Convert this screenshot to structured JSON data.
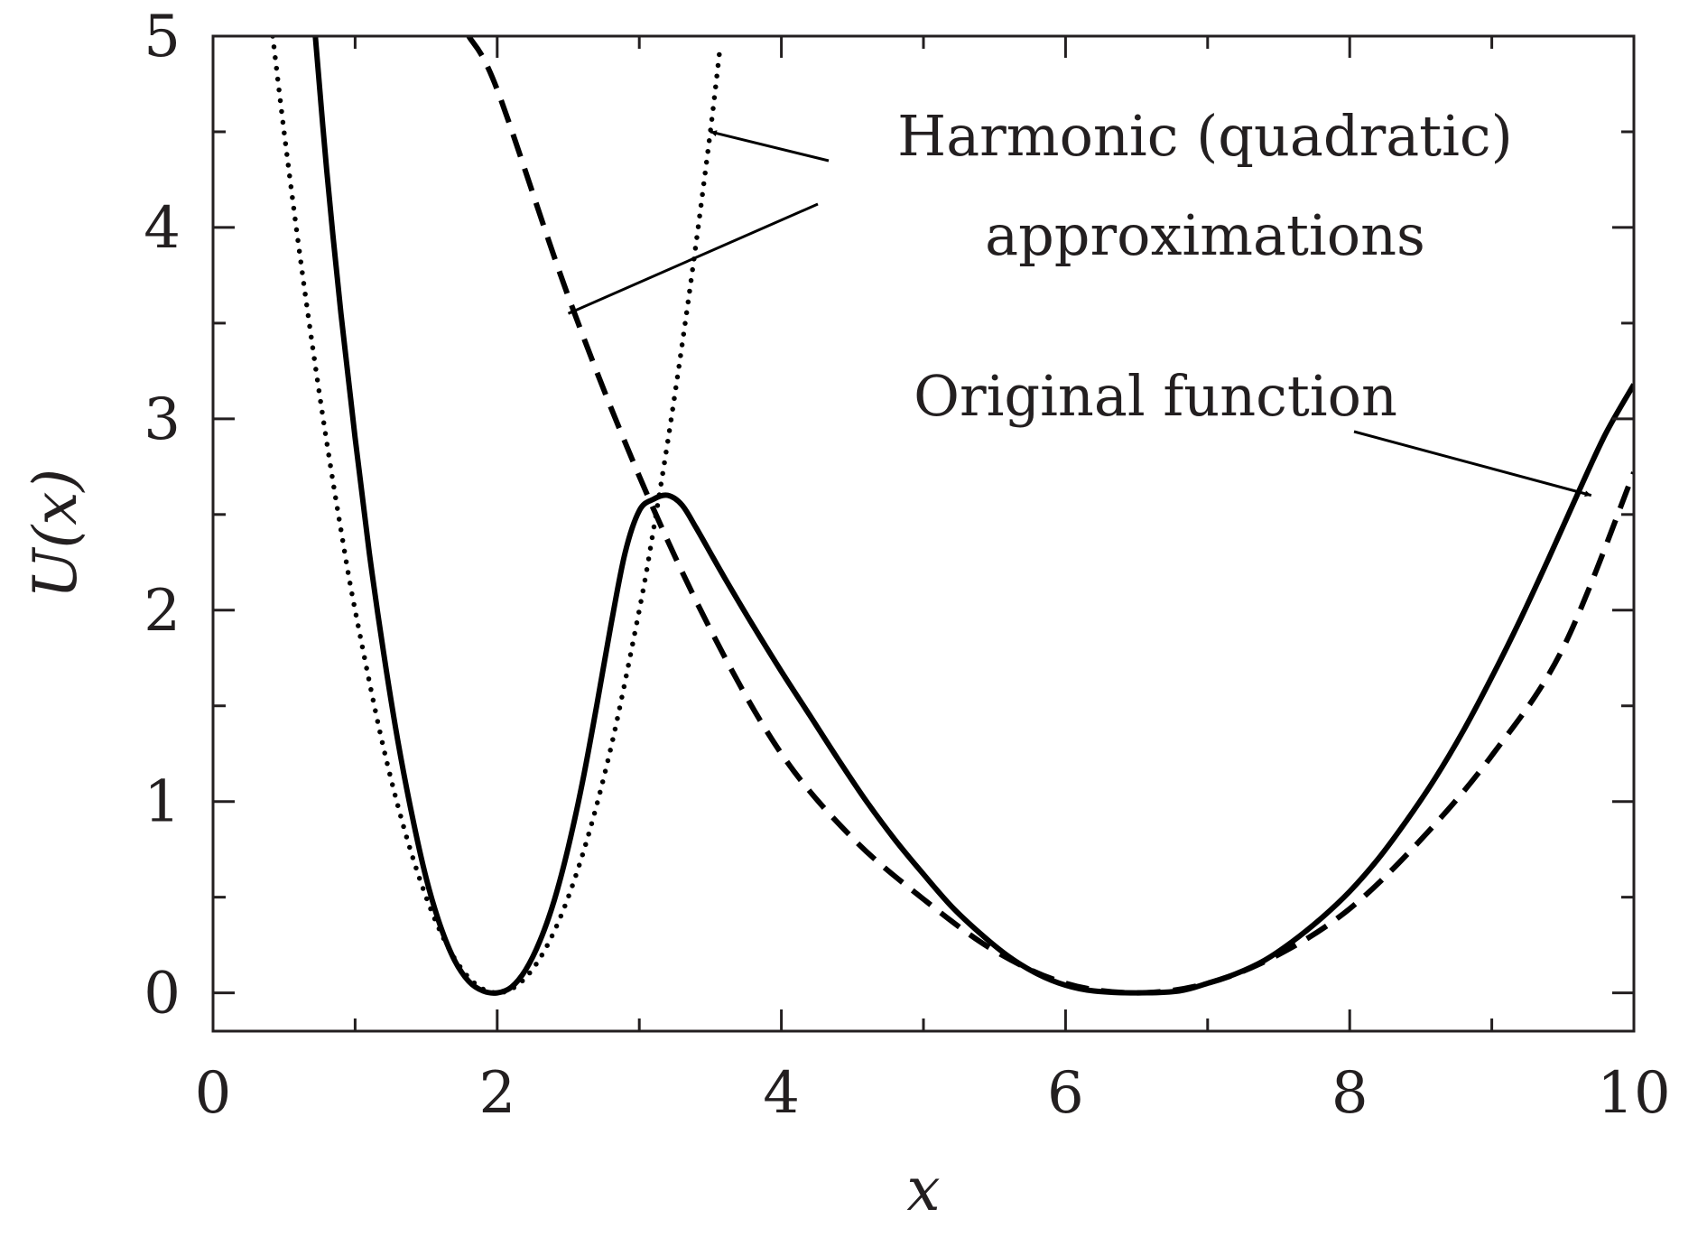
{
  "chart_data": {
    "type": "line",
    "title": "",
    "xlabel": "x",
    "ylabel": "U(x)",
    "xlim": [
      0,
      10
    ],
    "ylim": [
      -0.2,
      5
    ],
    "xticks": [
      0,
      2,
      4,
      6,
      8,
      10
    ],
    "xtick_labels": [
      "0",
      "2",
      "4",
      "6",
      "8",
      "10"
    ],
    "yticks": [
      0,
      1,
      2,
      3,
      4,
      5
    ],
    "ytick_labels": [
      "0",
      "1",
      "2",
      "3",
      "4",
      "5"
    ],
    "minor_x_step": 1,
    "minor_y_step": 0.5,
    "grid": false,
    "series": [
      {
        "name": "Original function",
        "style": "solid",
        "x": [
          0.72,
          0.8,
          0.9,
          1.0,
          1.1,
          1.2,
          1.3,
          1.4,
          1.5,
          1.6,
          1.7,
          1.8,
          1.9,
          2.0,
          2.1,
          2.2,
          2.3,
          2.4,
          2.5,
          2.6,
          2.7,
          2.8,
          2.9,
          3.0,
          3.1,
          3.2,
          3.3,
          3.4,
          3.5,
          3.6,
          3.8,
          4.0,
          4.2,
          4.4,
          4.6,
          4.8,
          5.0,
          5.2,
          5.4,
          5.6,
          5.8,
          6.0,
          6.2,
          6.5,
          6.8,
          7.0,
          7.2,
          7.4,
          7.6,
          7.8,
          8.0,
          8.2,
          8.4,
          8.6,
          8.8,
          9.0,
          9.2,
          9.4,
          9.6,
          9.8,
          10.0
        ],
        "y": [
          5.0,
          4.3,
          3.55,
          2.9,
          2.3,
          1.78,
          1.32,
          0.93,
          0.6,
          0.35,
          0.17,
          0.06,
          0.01,
          0.0,
          0.03,
          0.12,
          0.27,
          0.48,
          0.76,
          1.1,
          1.5,
          1.92,
          2.3,
          2.52,
          2.58,
          2.6,
          2.55,
          2.43,
          2.3,
          2.17,
          1.92,
          1.68,
          1.45,
          1.22,
          1.0,
          0.8,
          0.62,
          0.45,
          0.31,
          0.19,
          0.1,
          0.04,
          0.01,
          0.0,
          0.01,
          0.05,
          0.1,
          0.17,
          0.27,
          0.39,
          0.53,
          0.7,
          0.9,
          1.12,
          1.37,
          1.65,
          1.95,
          2.27,
          2.6,
          2.92,
          3.18
        ]
      },
      {
        "name": "Harmonic approximation (left well)",
        "style": "dotted",
        "x": [
          0.42,
          0.5,
          0.6,
          0.7,
          0.8,
          0.9,
          1.0,
          1.2,
          1.4,
          1.6,
          1.8,
          2.0,
          2.2,
          2.4,
          2.6,
          2.8,
          3.0,
          3.1,
          3.2,
          3.3,
          3.4,
          3.5,
          3.57
        ],
        "y": [
          5.0,
          4.5,
          3.92,
          3.38,
          2.88,
          2.42,
          2.0,
          1.28,
          0.72,
          0.32,
          0.08,
          0.0,
          0.08,
          0.32,
          0.72,
          1.28,
          2.0,
          2.42,
          2.88,
          3.38,
          3.92,
          4.5,
          4.95
        ]
      },
      {
        "name": "Harmonic approximation (right well)",
        "style": "dashed",
        "x": [
          1.8,
          2.0,
          2.5,
          3.0,
          3.5,
          4.0,
          4.5,
          5.0,
          5.5,
          6.0,
          6.5,
          7.0,
          7.5,
          8.0,
          8.5,
          9.0,
          9.5,
          10.0
        ],
        "y": [
          5.0,
          4.72,
          3.64,
          2.7,
          1.9,
          1.25,
          0.81,
          0.49,
          0.22,
          0.05,
          0.0,
          0.05,
          0.2,
          0.44,
          0.8,
          1.24,
          1.8,
          2.72
        ]
      }
    ],
    "annotations": [
      {
        "text": "Harmonic (quadratic)",
        "arrow_targets": [
          [
            3.5,
            4.5
          ]
        ]
      },
      {
        "text": "approximations",
        "arrow_targets": [
          [
            2.5,
            3.55
          ]
        ]
      },
      {
        "text": "Original function",
        "arrow_targets": [
          [
            9.7,
            2.6
          ]
        ]
      }
    ]
  }
}
